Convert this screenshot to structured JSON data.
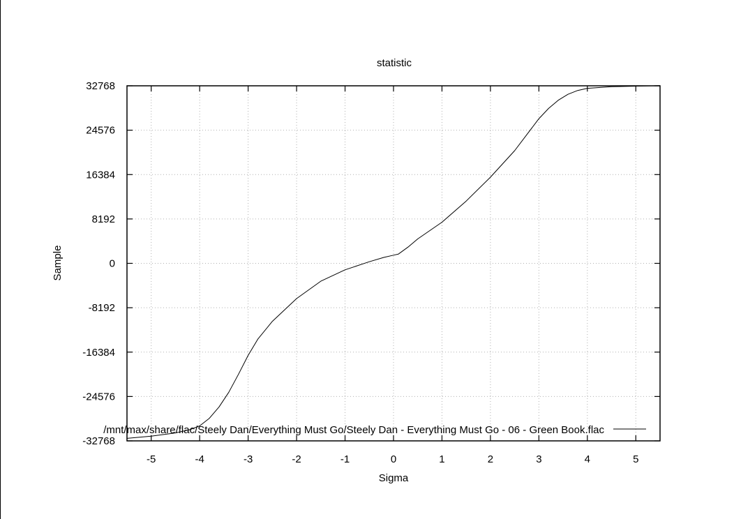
{
  "chart_data": {
    "type": "line",
    "title": "statistic",
    "xlabel": "Sigma",
    "ylabel": "Sample",
    "xlim": [
      -5.5,
      5.5
    ],
    "ylim": [
      -32768,
      32768
    ],
    "x_ticks": [
      -5,
      -4,
      -3,
      -2,
      -1,
      0,
      1,
      2,
      3,
      4,
      5
    ],
    "x_tick_labels": [
      "-5",
      "-4",
      "-3",
      "-2",
      "-1",
      "0",
      "1",
      "2",
      "3",
      "4",
      "5"
    ],
    "y_ticks": [
      32768,
      24576,
      16384,
      8192,
      0,
      -8192,
      -16384,
      -24576,
      -32768
    ],
    "y_tick_labels": [
      "32768",
      "24576",
      "16384",
      "8192",
      "0",
      "-8192",
      "-16384",
      "-24576",
      "-32768"
    ],
    "grid": true,
    "legend_position": "bottom-right",
    "series": [
      {
        "name": "/mnt/max/share/flac/Steely Dan/Everything Must Go/Steely Dan - Everything Must Go - 06 - Green Book.flac",
        "color": "#000000",
        "x": [
          -5.5,
          -5.0,
          -4.5,
          -4.2,
          -4.0,
          -3.8,
          -3.6,
          -3.4,
          -3.2,
          -3.0,
          -2.8,
          -2.5,
          -2.0,
          -1.5,
          -1.0,
          -0.5,
          -0.2,
          0.0,
          0.1,
          0.3,
          0.5,
          1.0,
          1.5,
          2.0,
          2.5,
          3.0,
          3.2,
          3.4,
          3.6,
          3.8,
          4.0,
          4.5,
          5.0,
          5.5
        ],
        "y": [
          -32300,
          -31900,
          -31300,
          -30700,
          -30000,
          -28600,
          -26500,
          -23800,
          -20500,
          -17000,
          -14000,
          -10700,
          -6500,
          -3300,
          -1200,
          300,
          1100,
          1500,
          1700,
          3000,
          4500,
          7600,
          11500,
          15900,
          20800,
          26700,
          28600,
          30100,
          31200,
          31900,
          32300,
          32600,
          32700,
          32800
        ]
      }
    ]
  }
}
